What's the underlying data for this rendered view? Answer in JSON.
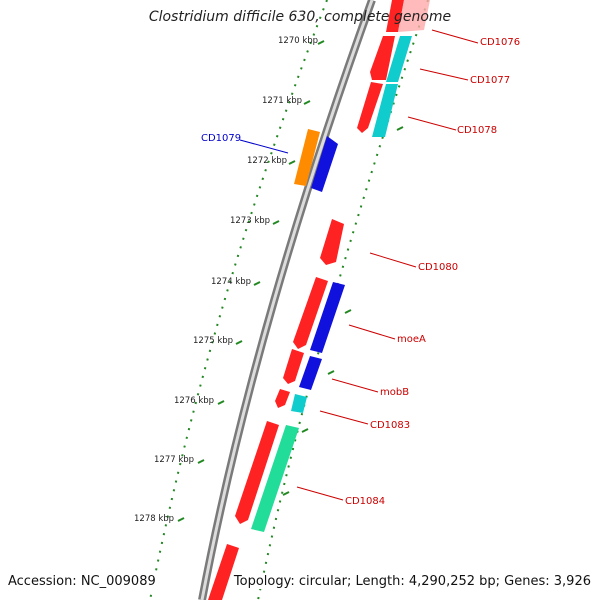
{
  "title": "Clostridium difficile 630, complete genome",
  "footer": {
    "accession": "Accession: NC_009089",
    "summary": "Topology: circular; Length: 4,290,252 bp; Genes: 3,926"
  },
  "colors": {
    "backbone": "#8a8a8a",
    "tick": "#228822",
    "forward_cds": "#ee1111",
    "reverse_cds": "#1111dd",
    "orange": "#ff8c00",
    "cyan": "#11cccc",
    "green": "#22dd99",
    "label_red": "#cc0000",
    "label_blue": "#0000cc"
  },
  "kbp_labels": [
    "1270 kbp",
    "1271 kbp",
    "1272 kbp",
    "1273 kbp",
    "1274 kbp",
    "1275 kbp",
    "1276 kbp",
    "1277 kbp",
    "1278 kbp"
  ],
  "gene_labels": [
    "CD1076",
    "CD1077",
    "CD1078",
    "CD1079",
    "CD1080",
    "moeA",
    "mobB",
    "CD1083",
    "CD1084"
  ]
}
